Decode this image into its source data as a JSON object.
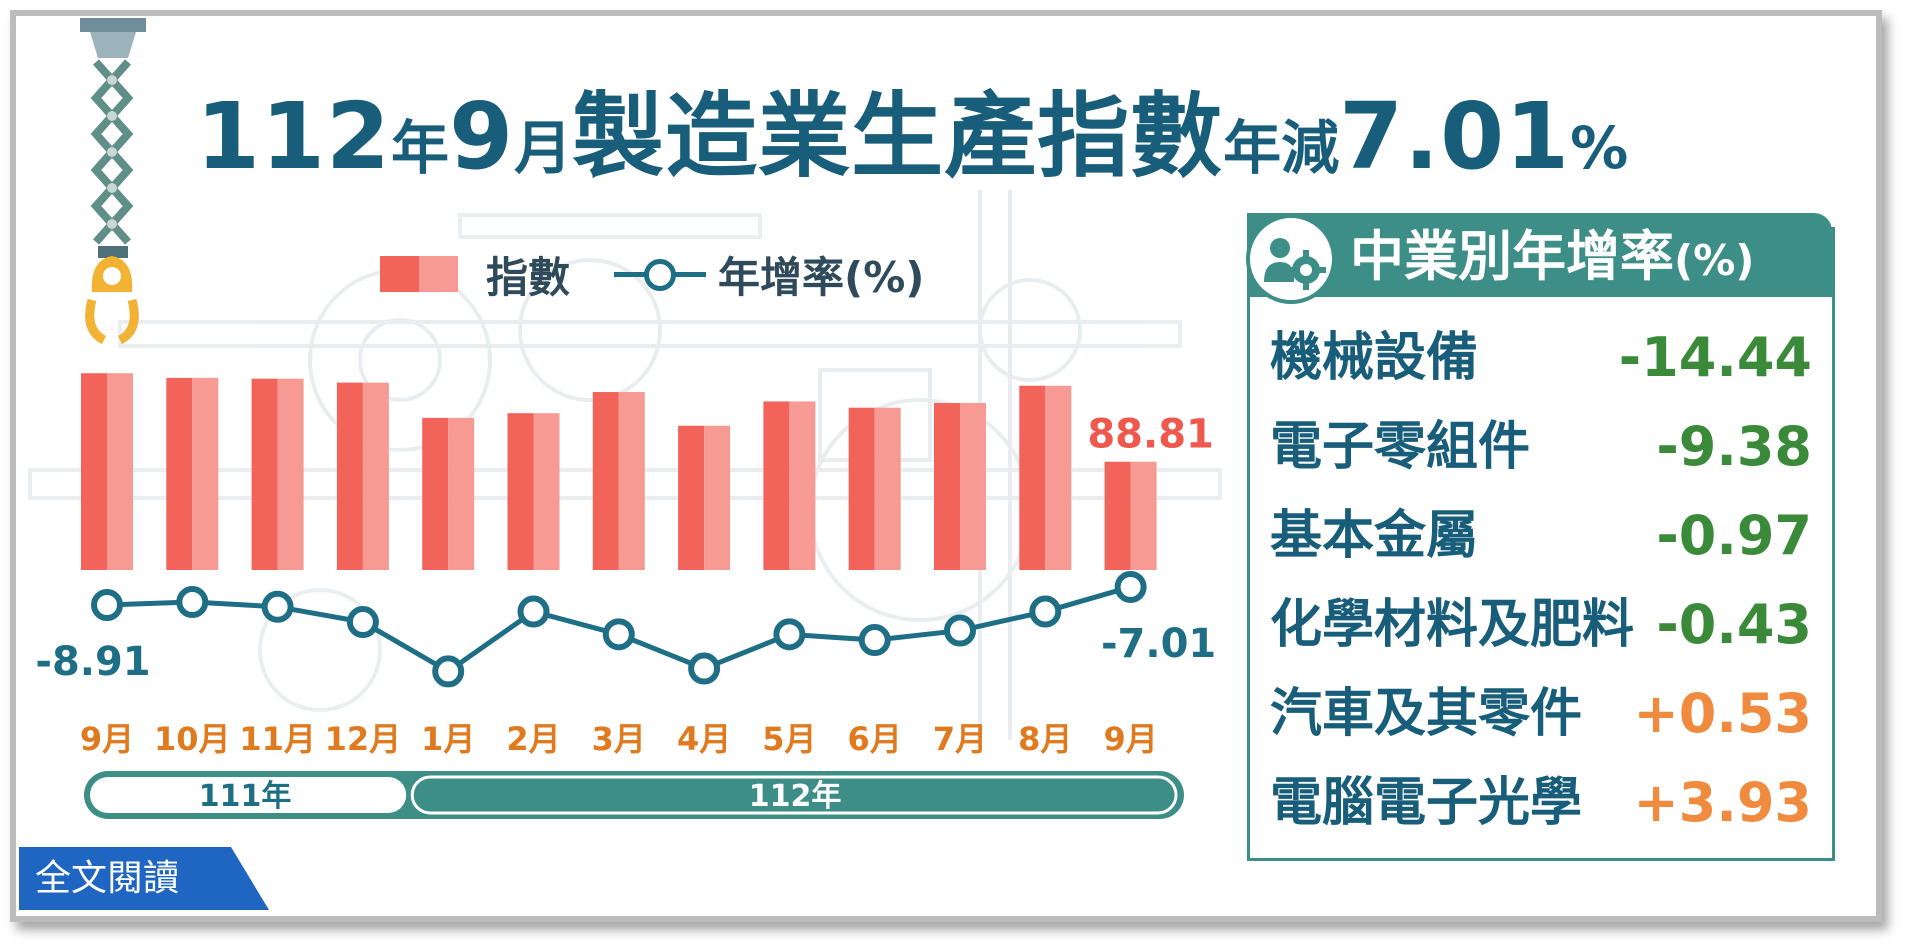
{
  "title": {
    "parts": [
      {
        "text": "112",
        "size": "big"
      },
      {
        "text": "年",
        "size": "small"
      },
      {
        "text": "9",
        "size": "big"
      },
      {
        "text": "月",
        "size": "small"
      },
      {
        "text": "製造業生產指數",
        "size": "big"
      },
      {
        "text": "年減",
        "size": "small"
      },
      {
        "text": "7.01",
        "size": "big"
      },
      {
        "text": "%",
        "size": "small"
      }
    ]
  },
  "legend": {
    "bar_label": "指數",
    "line_label": "年增率(%)"
  },
  "chart_data": {
    "type": "bar",
    "categories": [
      "9月",
      "10月",
      "11月",
      "12月",
      "1月",
      "2月",
      "3月",
      "4月",
      "5月",
      "6月",
      "7月",
      "8月",
      "9月"
    ],
    "series": [
      {
        "name": "指數",
        "type": "bar",
        "values": [
          100.1,
          99.5,
          99.4,
          98.9,
          94.4,
          95.0,
          97.7,
          93.4,
          96.5,
          95.7,
          96.3,
          98.5,
          88.81
        ]
      },
      {
        "name": "年增率(%)",
        "type": "line",
        "values": [
          -8.91,
          -8.6,
          -9.1,
          -10.7,
          -15.9,
          -9.6,
          -12.0,
          -15.6,
          -12.0,
          -12.6,
          -11.6,
          -9.6,
          -7.01
        ]
      }
    ],
    "data_labels": {
      "first_line": "-8.91",
      "last_line": "-7.01",
      "last_bar": "88.81"
    },
    "year_groups": [
      {
        "label": "111年",
        "count": 4
      },
      {
        "label": "112年",
        "count": 9
      }
    ]
  },
  "industry_panel": {
    "title": "中業別年增率",
    "title_suffix": "(%)",
    "rows": [
      {
        "name": "機械設備",
        "value": "-14.44",
        "color": "#3a8a3a"
      },
      {
        "name": "電子零組件",
        "value": "-9.38",
        "color": "#3a8a3a"
      },
      {
        "name": "基本金屬",
        "value": "-0.97",
        "color": "#3a8a3a"
      },
      {
        "name": "化學材料及肥料",
        "value": "-0.43",
        "color": "#3a8a3a"
      },
      {
        "name": "汽車及其零件",
        "value": "+0.53",
        "color": "#ef8a3e"
      },
      {
        "name": "電腦電子光學",
        "value": "+3.93",
        "color": "#ef8a3e"
      }
    ]
  },
  "read_more_label": "全文閱讀",
  "colors": {
    "title": "#185e7a",
    "bar": "#f2635a",
    "bar_light": "#f89a94",
    "line": "#1e6e86",
    "month_label": "#e07a1f",
    "panel": "#3d8e87",
    "bar_value_label": "#f0574d",
    "button": "#1f66c2"
  }
}
